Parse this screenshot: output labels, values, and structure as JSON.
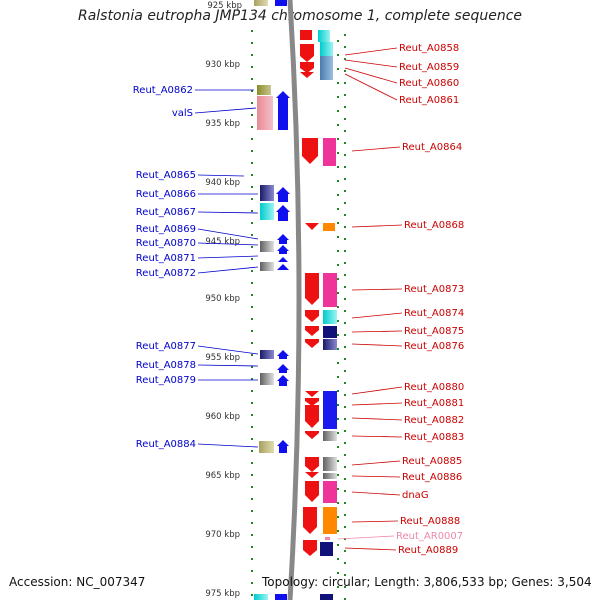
{
  "title": "Ralstonia eutropha JMP134 chromosome 1, complete sequence",
  "footer": {
    "accession": "Accession: NC_007347",
    "topology": "Topology: circular; Length: 3,806,533 bp; Genes: 3,504"
  },
  "axis": {
    "ticks": [
      "925 kbp",
      "930 kbp",
      "935 kbp",
      "940 kbp",
      "945 kbp",
      "950 kbp",
      "955 kbp",
      "960 kbp",
      "965 kbp",
      "970 kbp",
      "975 kbp"
    ]
  },
  "colors": {
    "left_label": "#0000cc",
    "right_label": "#cc0000",
    "rna_label": "#ee88aa",
    "tick": "#228822"
  },
  "left_labels": [
    {
      "text": "Reut_A0862"
    },
    {
      "text": "valS"
    },
    {
      "text": "Reut_A0865"
    },
    {
      "text": "Reut_A0866"
    },
    {
      "text": "Reut_A0867"
    },
    {
      "text": "Reut_A0869"
    },
    {
      "text": "Reut_A0870"
    },
    {
      "text": "Reut_A0871"
    },
    {
      "text": "Reut_A0872"
    },
    {
      "text": "Reut_A0877"
    },
    {
      "text": "Reut_A0878"
    },
    {
      "text": "Reut_A0879"
    },
    {
      "text": "Reut_A0884"
    }
  ],
  "right_labels": [
    {
      "text": "Reut_A0858"
    },
    {
      "text": "Reut_A0859"
    },
    {
      "text": "Reut_A0860"
    },
    {
      "text": "Reut_A0861"
    },
    {
      "text": "Reut_A0864"
    },
    {
      "text": "Reut_A0868"
    },
    {
      "text": "Reut_A0873"
    },
    {
      "text": "Reut_A0874"
    },
    {
      "text": "Reut_A0875"
    },
    {
      "text": "Reut_A0876"
    },
    {
      "text": "Reut_A0880"
    },
    {
      "text": "Reut_A0881"
    },
    {
      "text": "Reut_A0882"
    },
    {
      "text": "Reut_A0883"
    },
    {
      "text": "Reut_A0885"
    },
    {
      "text": "Reut_A0886"
    },
    {
      "text": "dnaG"
    },
    {
      "text": "Reut_A0888"
    },
    {
      "text": "Reut_AR0007",
      "rna": true
    },
    {
      "text": "Reut_A0889"
    }
  ]
}
